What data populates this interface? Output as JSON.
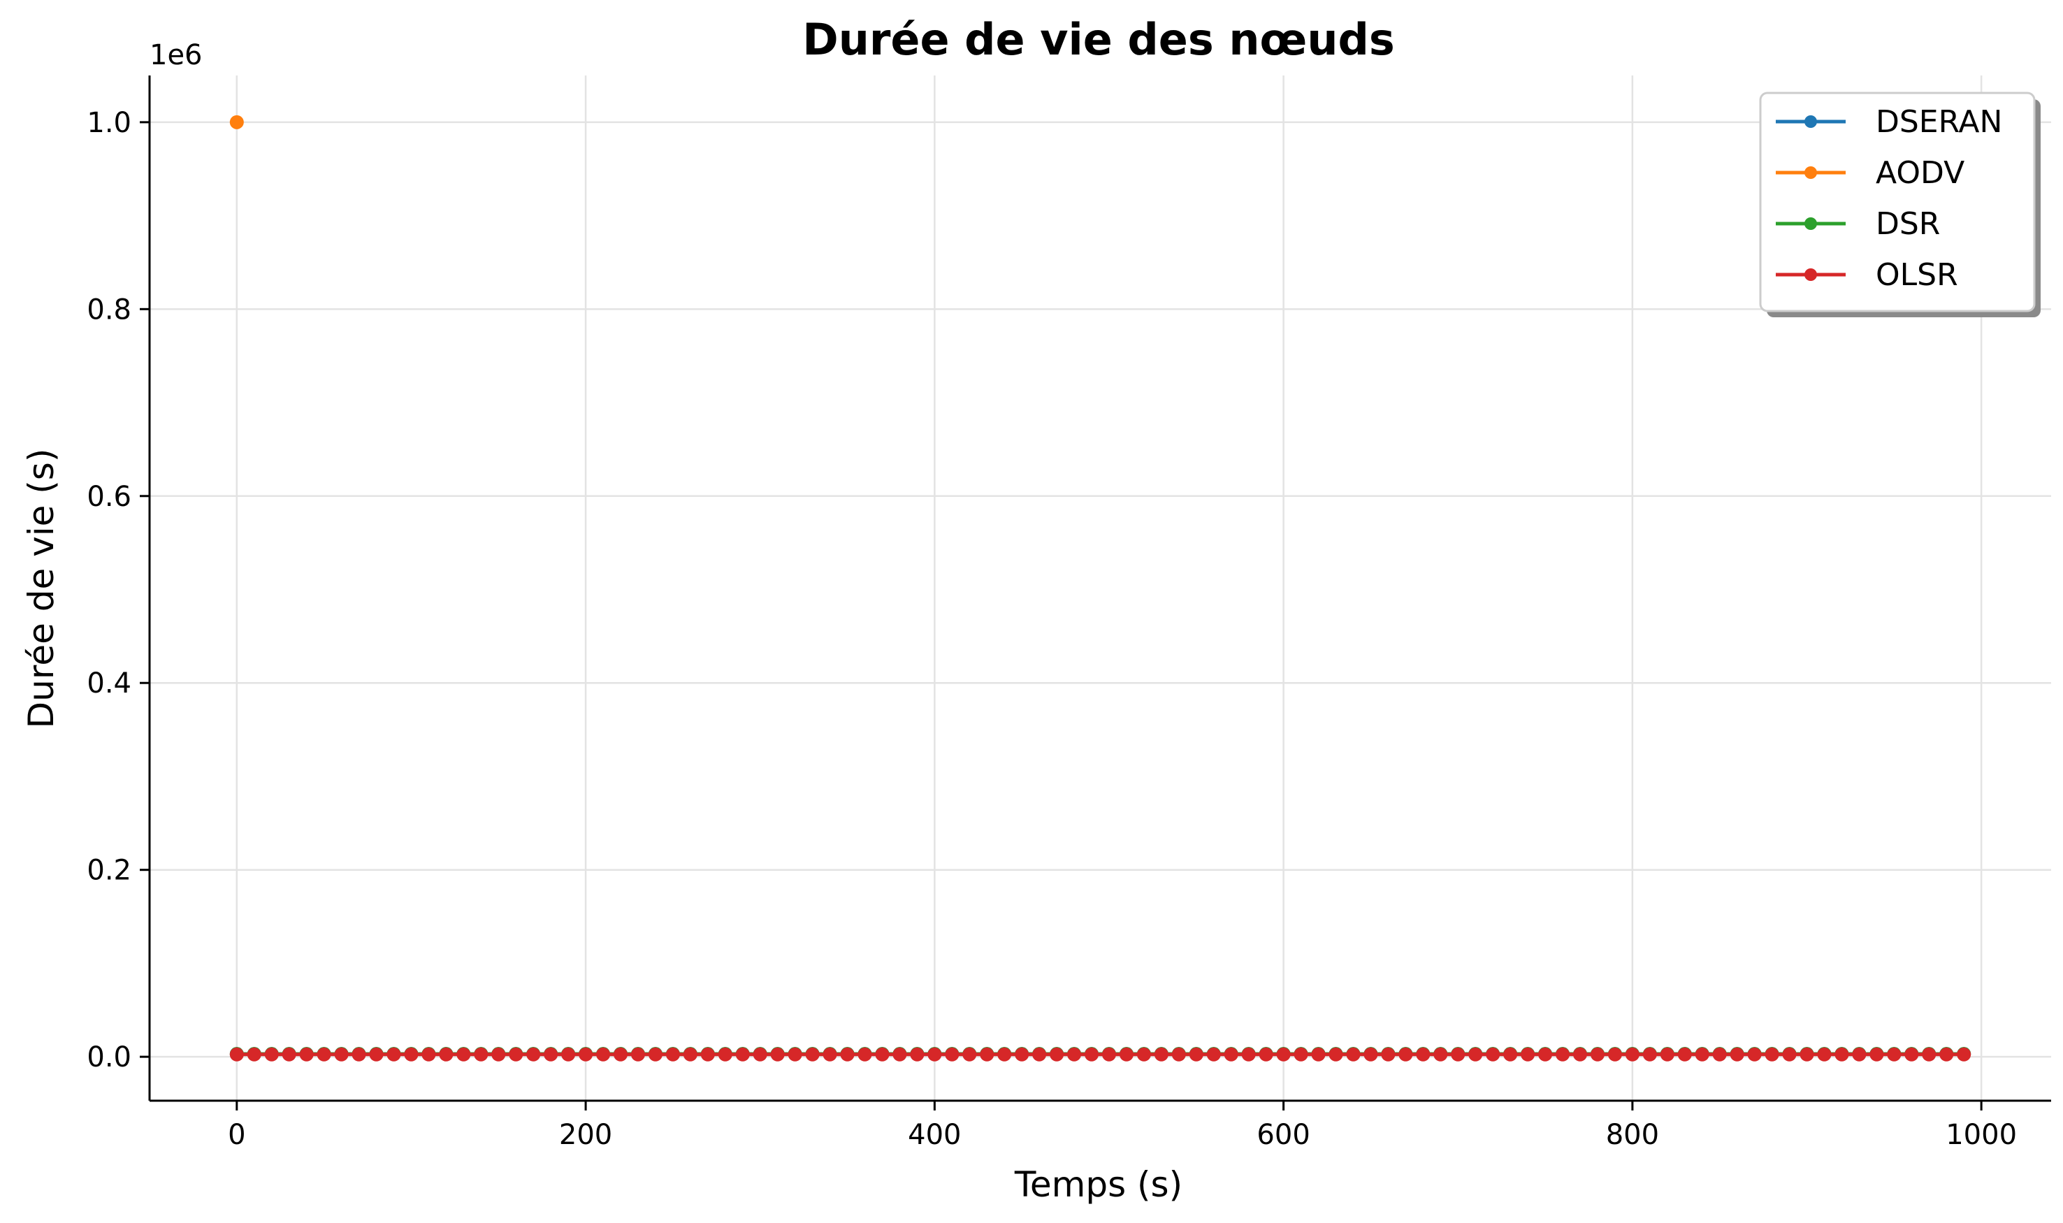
{
  "chart_data": {
    "type": "line",
    "title": "Durée de vie des nœuds",
    "xlabel": "Temps (s)",
    "ylabel": "Durée de vie (s)",
    "y_offset_text": "1e6",
    "xlim": [
      -50,
      1040
    ],
    "ylim": [
      -0.047,
      1.05
    ],
    "x_ticks": [
      0,
      200,
      400,
      600,
      800,
      1000
    ],
    "x_tick_labels": [
      "0",
      "200",
      "400",
      "600",
      "800",
      "1000"
    ],
    "y_ticks": [
      0.0,
      0.2,
      0.4,
      0.6,
      0.8,
      1.0
    ],
    "y_tick_labels": [
      "0.0",
      "0.2",
      "0.4",
      "0.6",
      "0.8",
      "1.0"
    ],
    "grid": true,
    "legend_position": "top-right",
    "x": {
      "start": 0,
      "stop": 990,
      "step": 10
    },
    "series": [
      {
        "name": "DSERAN",
        "color": "#1f77b4",
        "first_value": 0.003,
        "value": 0.003
      },
      {
        "name": "AODV",
        "color": "#ff7f0e",
        "first_value": 1.0,
        "value": null
      },
      {
        "name": "DSR",
        "color": "#2ca02c",
        "first_value": 0.003,
        "value": 0.003
      },
      {
        "name": "OLSR",
        "color": "#d62728",
        "first_value": 0.0025,
        "value": 0.0025
      }
    ]
  }
}
